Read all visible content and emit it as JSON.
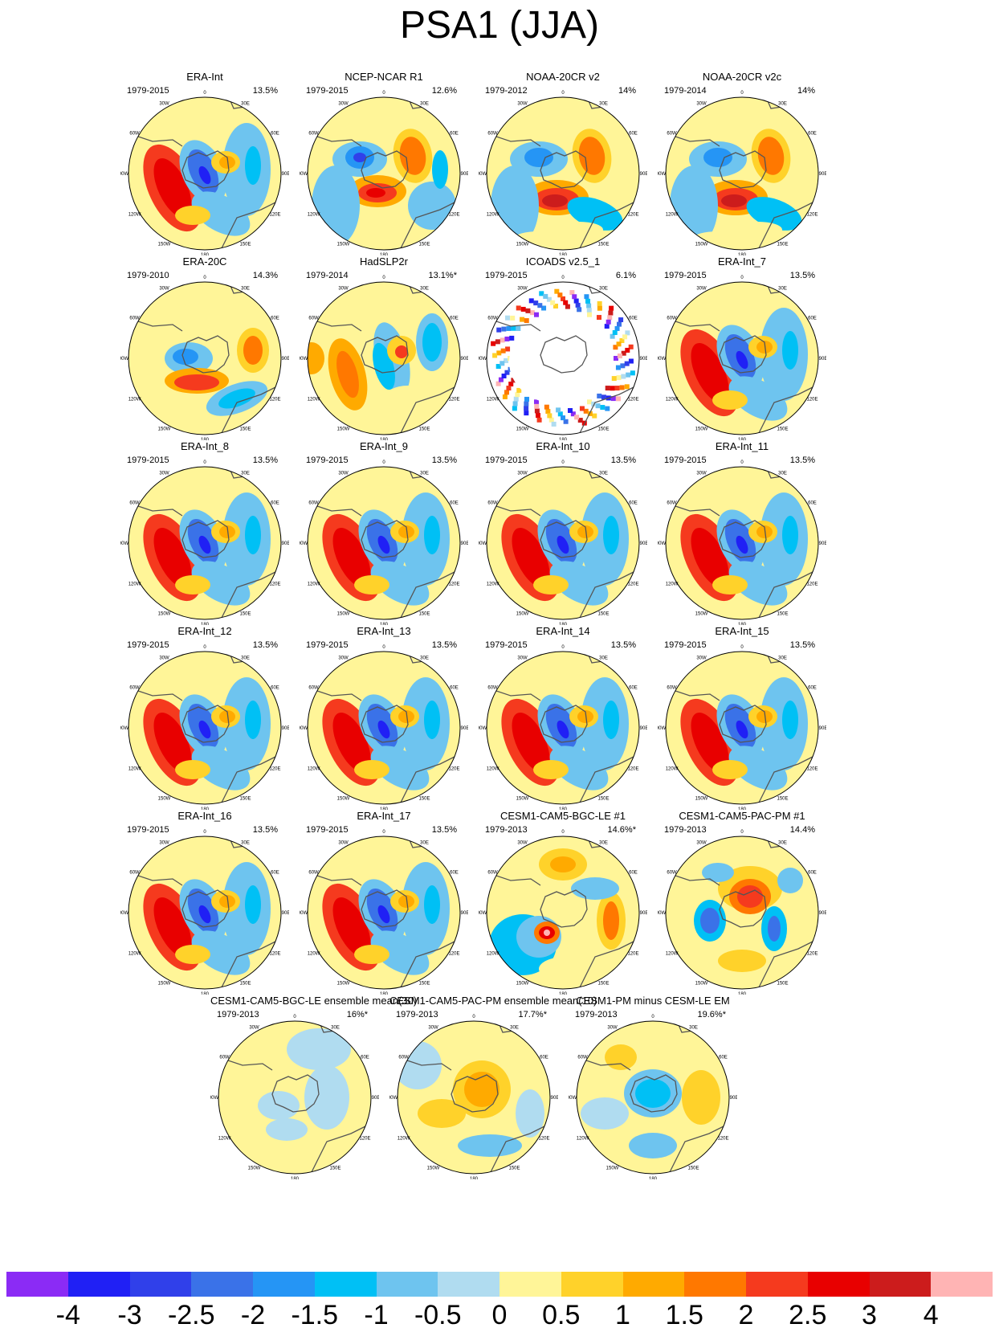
{
  "title": "PSA1 (JJA)",
  "longitude_labels": [
    "0",
    "30E",
    "60E",
    "90E",
    "120E",
    "150E",
    "180",
    "150W",
    "120W",
    "90W",
    "60W",
    "30W"
  ],
  "panels": [
    {
      "title": "ERA-Int",
      "years": "1979-2015",
      "percent": "13.5%",
      "pattern": "era"
    },
    {
      "title": "NCEP-NCAR R1",
      "years": "1979-2015",
      "percent": "12.6%",
      "pattern": "ncep"
    },
    {
      "title": "NOAA-20CR v2",
      "years": "1979-2012",
      "percent": "14%",
      "pattern": "noaa"
    },
    {
      "title": "NOAA-20CR v2c",
      "years": "1979-2014",
      "percent": "14%",
      "pattern": "noaa"
    },
    {
      "title": "ERA-20C",
      "years": "1979-2010",
      "percent": "14.3%",
      "pattern": "era20c"
    },
    {
      "title": "HadSLP2r",
      "years": "1979-2014",
      "percent": "13.1%*",
      "pattern": "hadslp"
    },
    {
      "title": "ICOADS v2.5_1",
      "years": "1979-2015",
      "percent": "6.1%",
      "pattern": "icoads"
    },
    {
      "title": "ERA-Int_7",
      "years": "1979-2015",
      "percent": "13.5%",
      "pattern": "era"
    },
    {
      "title": "ERA-Int_8",
      "years": "1979-2015",
      "percent": "13.5%",
      "pattern": "era"
    },
    {
      "title": "ERA-Int_9",
      "years": "1979-2015",
      "percent": "13.5%",
      "pattern": "era"
    },
    {
      "title": "ERA-Int_10",
      "years": "1979-2015",
      "percent": "13.5%",
      "pattern": "era"
    },
    {
      "title": "ERA-Int_11",
      "years": "1979-2015",
      "percent": "13.5%",
      "pattern": "era"
    },
    {
      "title": "ERA-Int_12",
      "years": "1979-2015",
      "percent": "13.5%",
      "pattern": "era"
    },
    {
      "title": "ERA-Int_13",
      "years": "1979-2015",
      "percent": "13.5%",
      "pattern": "era"
    },
    {
      "title": "ERA-Int_14",
      "years": "1979-2015",
      "percent": "13.5%",
      "pattern": "era"
    },
    {
      "title": "ERA-Int_15",
      "years": "1979-2015",
      "percent": "13.5%",
      "pattern": "era"
    },
    {
      "title": "ERA-Int_16",
      "years": "1979-2015",
      "percent": "13.5%",
      "pattern": "era"
    },
    {
      "title": "ERA-Int_17",
      "years": "1979-2015",
      "percent": "13.5%",
      "pattern": "era"
    },
    {
      "title": "CESM1-CAM5-BGC-LE #1",
      "years": "1979-2013",
      "percent": "14.6%*",
      "pattern": "bgc1"
    },
    {
      "title": "CESM1-CAM5-PAC-PM #1",
      "years": "1979-2013",
      "percent": "14.4%",
      "pattern": "pac1"
    },
    {
      "title": "CESM1-CAM5-BGC-LE ensemble mean(30)",
      "years": "1979-2013",
      "percent": "16%*",
      "pattern": "bgcem"
    },
    {
      "title": "CESM1-CAM5-PAC-PM ensemble mean(10)",
      "years": "1979-2013",
      "percent": "17.7%*",
      "pattern": "pacem"
    },
    {
      "title": "CESM1-PM minus CESM-LE EM",
      "years": "1979-2013",
      "percent": "19.6%*",
      "pattern": "diff"
    }
  ],
  "colorbar": {
    "colors": [
      "#8b2bf5",
      "#2020f5",
      "#3040ea",
      "#3a72e8",
      "#2595f5",
      "#00c0f5",
      "#6ec4ef",
      "#b0dcf0",
      "#fff598",
      "#ffd22a",
      "#ffaa00",
      "#ff7800",
      "#f53a1e",
      "#e80000",
      "#cc1c1c",
      "#ffb4b4"
    ],
    "labels": [
      "-4",
      "-3",
      "-2.5",
      "-2",
      "-1.5",
      "-1",
      "-0.5",
      "0",
      "0.5",
      "1",
      "1.5",
      "2",
      "2.5",
      "3",
      "4"
    ]
  }
}
